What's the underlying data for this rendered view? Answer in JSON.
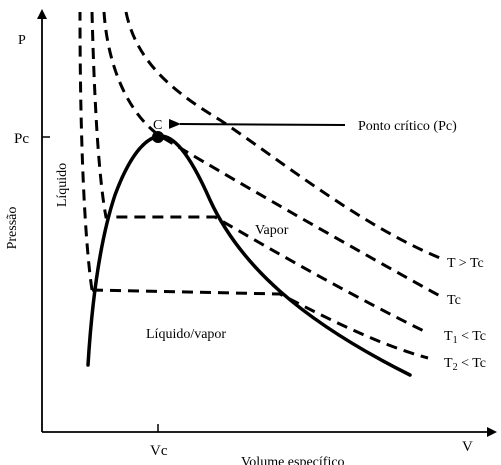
{
  "axes": {
    "y_axis_letter": "P",
    "y_axis_title": "Pressão",
    "x_axis_letter": "V",
    "x_axis_title": "Volume específico",
    "y_tick_label": "Pc",
    "x_tick_label": "Vc"
  },
  "labels": {
    "critical_point_letter": "C",
    "critical_point_callout": "Ponto crítico (Pc)",
    "region_liquid": "Líquido",
    "region_vapor": "Vapor",
    "region_mixture": "Líquido/vapor"
  },
  "isotherms": [
    {
      "name": "T > Tc"
    },
    {
      "name": "Tc"
    },
    {
      "name_main": "T",
      "name_sub": "1",
      "name_rest": " < Tc"
    },
    {
      "name_main": "T",
      "name_sub": "2",
      "name_rest": " < Tc"
    }
  ]
}
